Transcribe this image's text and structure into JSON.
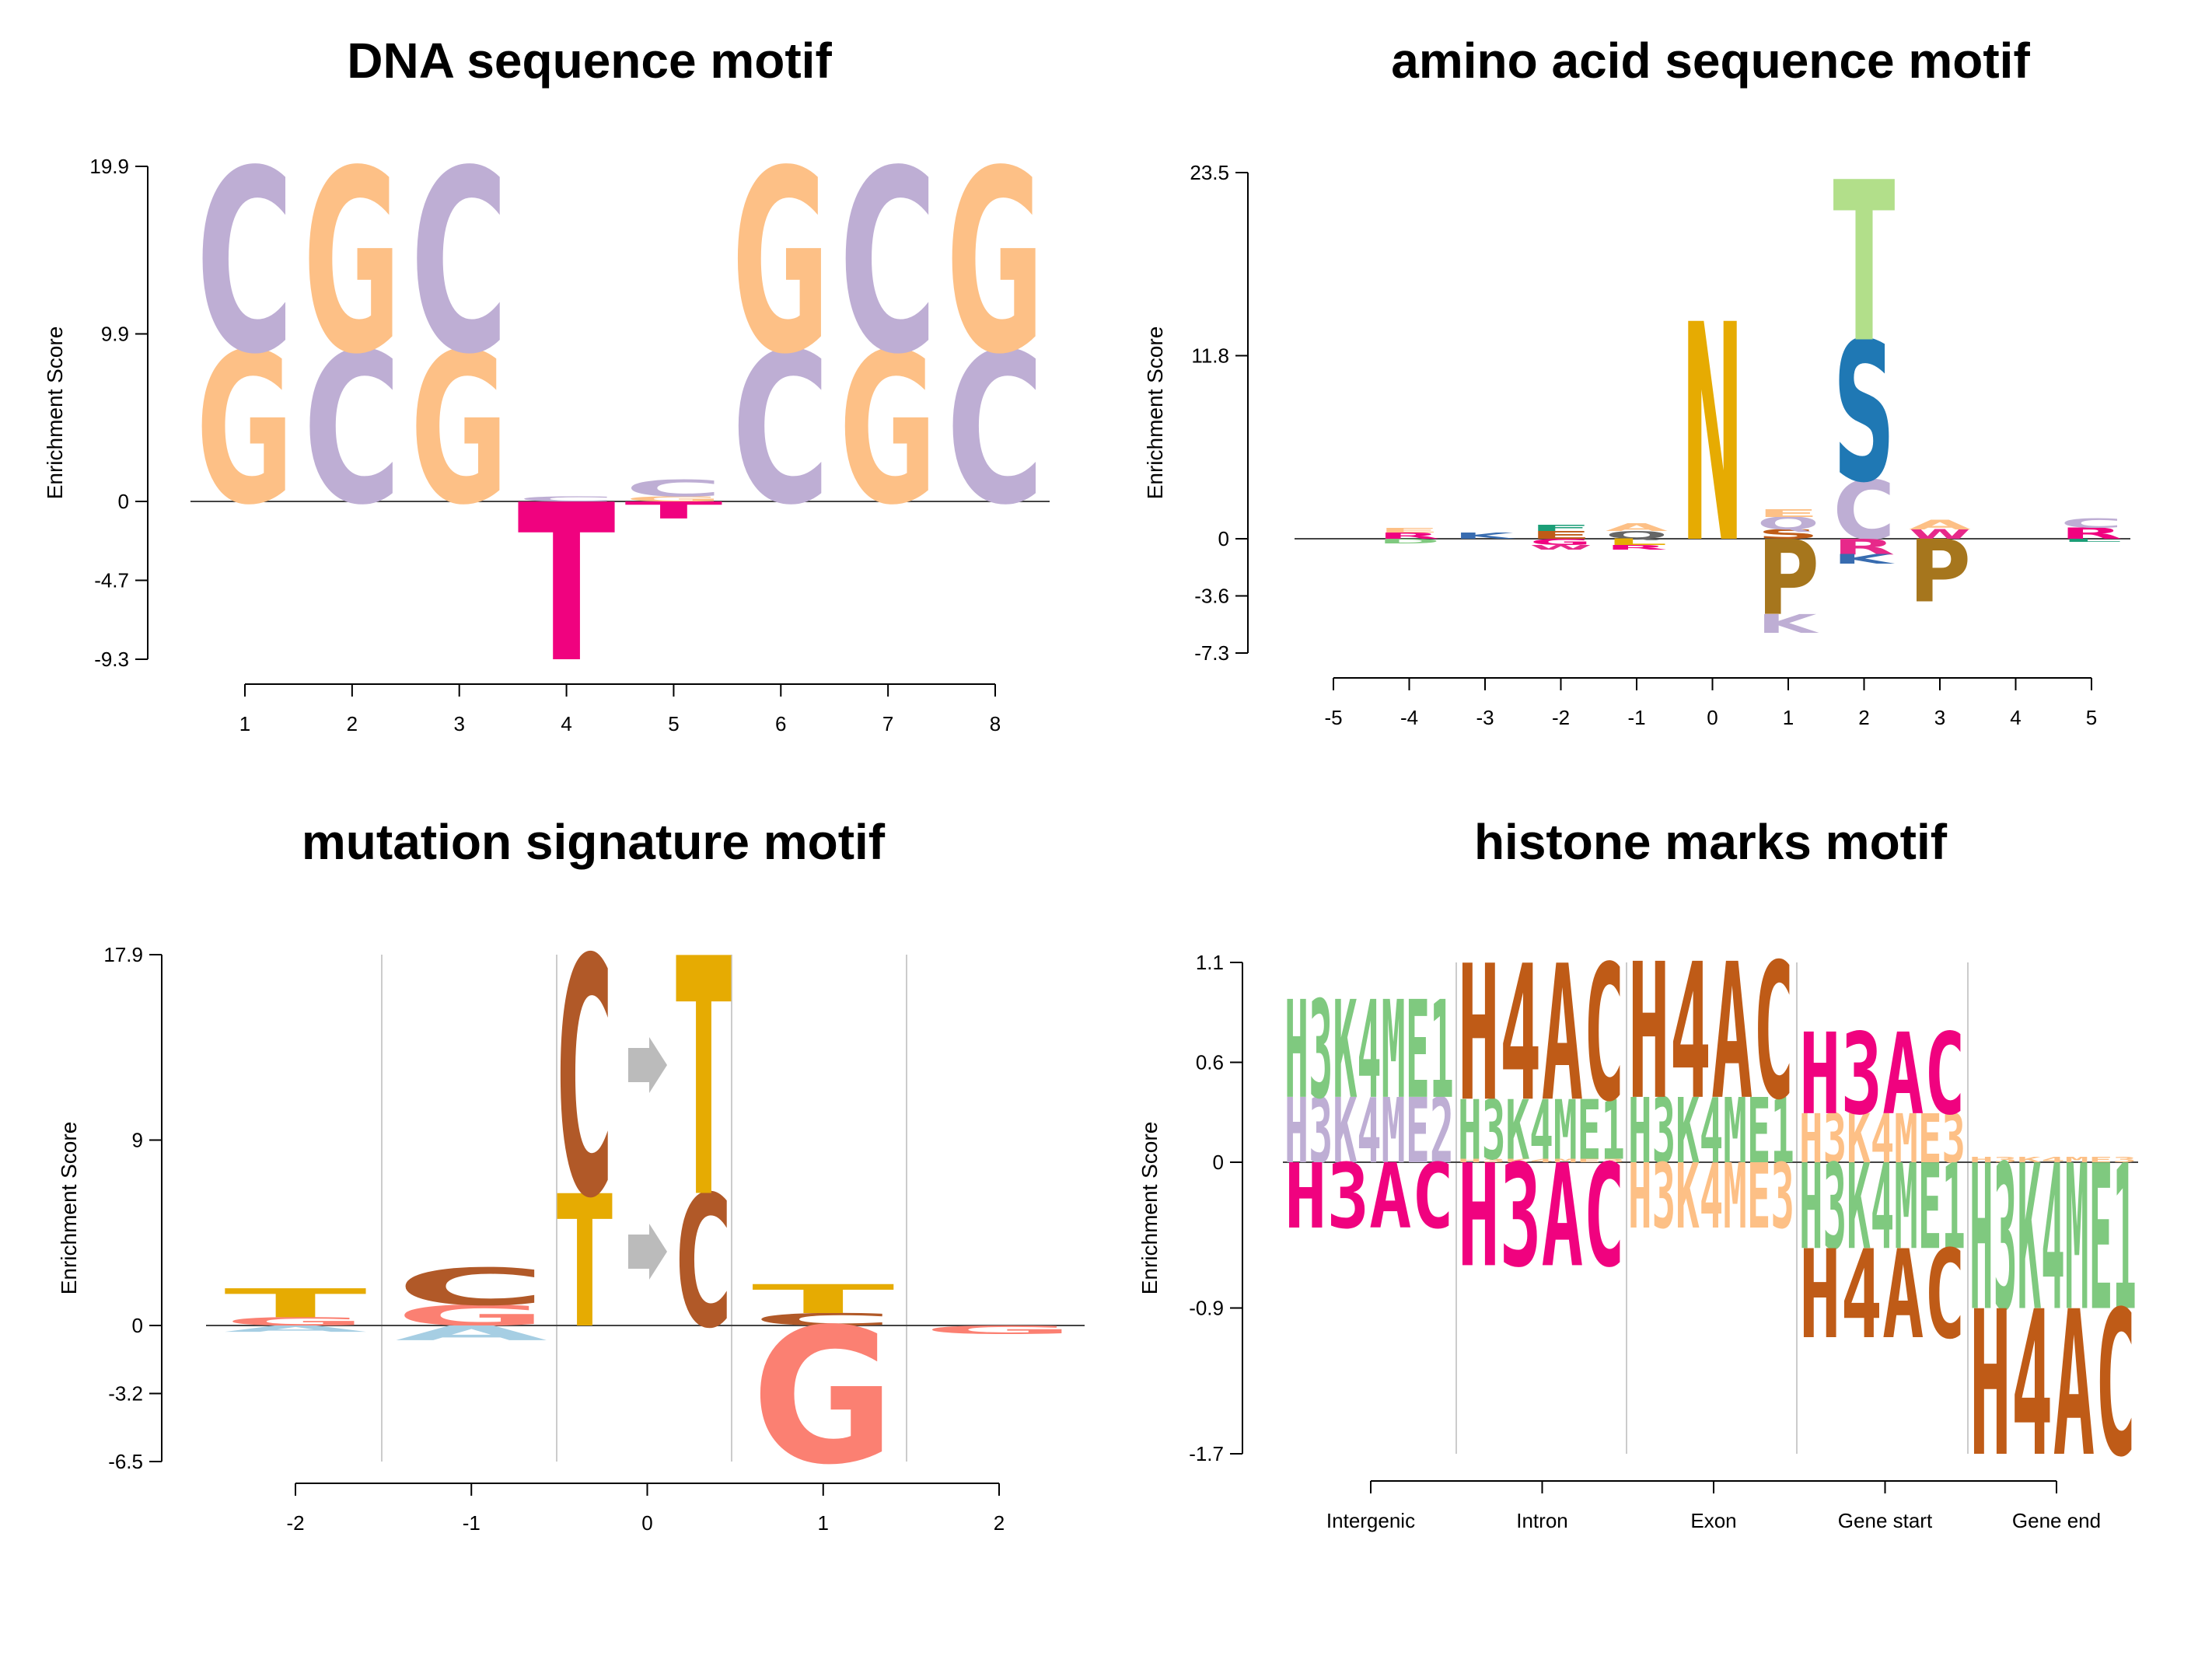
{
  "chart_data": [
    {
      "type": "sequence-logo",
      "title": "DNA sequence motif",
      "ylabel": "Enrichment Score",
      "yticks": [
        "19.9",
        "9.9",
        "0",
        "-4.7",
        "-9.3"
      ],
      "ylim": [
        -9.3,
        19.9
      ],
      "xticks": [
        "1",
        "2",
        "3",
        "4",
        "5",
        "6",
        "7",
        "8"
      ],
      "positions": [
        {
          "x": "1",
          "stack": [
            {
              "letter": "G",
              "value": 9.0
            },
            {
              "letter": "C",
              "value": 10.9
            }
          ]
        },
        {
          "x": "2",
          "stack": [
            {
              "letter": "C",
              "value": 9.0
            },
            {
              "letter": "G",
              "value": 10.9
            }
          ]
        },
        {
          "x": "3",
          "stack": [
            {
              "letter": "G",
              "value": 9.0
            },
            {
              "letter": "C",
              "value": 10.9
            }
          ]
        },
        {
          "x": "4",
          "stack": [
            {
              "letter": "C",
              "value": 0.3
            },
            {
              "letter": "T",
              "value": -9.3
            }
          ]
        },
        {
          "x": "5",
          "stack": [
            {
              "letter": "G",
              "value": 0.3
            },
            {
              "letter": "C",
              "value": 1.0
            },
            {
              "letter": "T",
              "value": -1.0
            }
          ]
        },
        {
          "x": "6",
          "stack": [
            {
              "letter": "C",
              "value": 9.0
            },
            {
              "letter": "G",
              "value": 10.9
            }
          ]
        },
        {
          "x": "7",
          "stack": [
            {
              "letter": "G",
              "value": 9.0
            },
            {
              "letter": "C",
              "value": 10.9
            }
          ]
        },
        {
          "x": "8",
          "stack": [
            {
              "letter": "C",
              "value": 9.0
            },
            {
              "letter": "G",
              "value": 10.9
            }
          ]
        }
      ],
      "colors": {
        "C": "#BEAED4",
        "G": "#FDC086",
        "T": "#F0027F",
        "A": "#7FC97F"
      }
    },
    {
      "type": "sequence-logo",
      "title": "amino acid sequence motif",
      "ylabel": "Enrichment Score",
      "yticks": [
        "23.5",
        "11.8",
        "0",
        "-3.6",
        "-7.3"
      ],
      "ylim": [
        -7.3,
        23.5
      ],
      "xticks": [
        "-5",
        "-4",
        "-3",
        "-2",
        "-1",
        "0",
        "1",
        "2",
        "3",
        "4",
        "5"
      ],
      "positions": [
        {
          "x": "-4",
          "stack": [
            {
              "letter": "R",
              "value": 0.4,
              "color": "#F0027F"
            },
            {
              "letter": "E",
              "value": 0.3,
              "color": "#FDC086"
            },
            {
              "letter": "D",
              "value": -0.3,
              "color": "#7FC97F"
            }
          ]
        },
        {
          "x": "-3",
          "stack": [
            {
              "letter": "K",
              "value": 0.4,
              "color": "#386CB0"
            }
          ]
        },
        {
          "x": "-2",
          "stack": [
            {
              "letter": "E",
              "value": 0.5,
              "color": "#BF5B17"
            },
            {
              "letter": "F",
              "value": 0.4,
              "color": "#1B9E77"
            },
            {
              "letter": "G",
              "value": -0.4,
              "color": "#F0027F"
            },
            {
              "letter": "W",
              "value": -0.3,
              "color": "#E7298A"
            }
          ]
        },
        {
          "x": "-1",
          "stack": [
            {
              "letter": "Q",
              "value": 0.5,
              "color": "#666666"
            },
            {
              "letter": "A",
              "value": 0.5,
              "color": "#FDC086"
            },
            {
              "letter": "L",
              "value": -0.4,
              "color": "#E6AB02"
            },
            {
              "letter": "R",
              "value": -0.3,
              "color": "#F0027F"
            }
          ]
        },
        {
          "x": "0",
          "stack": [
            {
              "letter": "N",
              "value": 14.0,
              "color": "#E6AB02"
            }
          ]
        },
        {
          "x": "1",
          "stack": [
            {
              "letter": "S",
              "value": 0.6,
              "color": "#BF5B17"
            },
            {
              "letter": "Q",
              "value": 0.8,
              "color": "#BEAED4"
            },
            {
              "letter": "E",
              "value": 0.5,
              "color": "#FDC086"
            },
            {
              "letter": "P",
              "value": -4.8,
              "color": "#A6761D"
            },
            {
              "letter": "K",
              "value": -1.2,
              "color": "#BEAED4"
            }
          ]
        },
        {
          "x": "2",
          "stack": [
            {
              "letter": "C",
              "value": 3.8,
              "color": "#BEAED4"
            },
            {
              "letter": "S",
              "value": 9.0,
              "color": "#1F78B4"
            },
            {
              "letter": "T",
              "value": 10.3,
              "color": "#B2DF8A"
            },
            {
              "letter": "R",
              "value": -1.0,
              "color": "#E7298A"
            },
            {
              "letter": "K",
              "value": -0.6,
              "color": "#386CB0"
            }
          ]
        },
        {
          "x": "3",
          "stack": [
            {
              "letter": "W",
              "value": 0.6,
              "color": "#E7298A"
            },
            {
              "letter": "A",
              "value": 0.6,
              "color": "#FDC086"
            },
            {
              "letter": "P",
              "value": -4.0,
              "color": "#A6761D"
            }
          ]
        },
        {
          "x": "5",
          "stack": [
            {
              "letter": "R",
              "value": 0.7,
              "color": "#F0027F"
            },
            {
              "letter": "C",
              "value": 0.6,
              "color": "#BEAED4"
            },
            {
              "letter": "L",
              "value": -0.2,
              "color": "#1B9E77"
            }
          ]
        }
      ]
    },
    {
      "type": "sequence-logo",
      "title": "mutation signature motif",
      "ylabel": "Enrichment Score",
      "yticks": [
        "17.9",
        "9",
        "0",
        "-3.2",
        "-6.5"
      ],
      "ylim": [
        -6.5,
        17.9
      ],
      "xticks": [
        "-2",
        "-1",
        "0",
        "1",
        "2"
      ],
      "positions": [
        {
          "x": "-2",
          "stack": [
            {
              "letter": "G",
              "value": 0.4,
              "color": "#FB8072"
            },
            {
              "letter": "T",
              "value": 1.4,
              "color": "#E6AB02"
            },
            {
              "letter": "A",
              "value": -0.3,
              "color": "#A6CEE3"
            }
          ]
        },
        {
          "x": "-1",
          "stack": [
            {
              "letter": "G",
              "value": 1.0,
              "color": "#FB8072"
            },
            {
              "letter": "C",
              "value": 1.8,
              "color": "#B15928"
            },
            {
              "letter": "A",
              "value": -0.7,
              "color": "#A6CEE3"
            }
          ]
        },
        {
          "x": "0 ref",
          "stack": [
            {
              "letter": "T",
              "value": 6.4,
              "color": "#E6AB02"
            },
            {
              "letter": "C",
              "value": 11.5,
              "color": "#B15928"
            }
          ]
        },
        {
          "x": "0 alt",
          "stack": [
            {
              "letter": "C",
              "value": 6.4,
              "color": "#B15928"
            },
            {
              "letter": "T",
              "value": 11.5,
              "color": "#E6AB02"
            }
          ]
        },
        {
          "x": "1",
          "stack": [
            {
              "letter": "C",
              "value": 0.6,
              "color": "#B15928"
            },
            {
              "letter": "T",
              "value": 1.4,
              "color": "#E6AB02"
            },
            {
              "letter": "G",
              "value": -6.5,
              "color": "#FB8072"
            }
          ]
        },
        {
          "x": "2",
          "stack": [
            {
              "letter": "G",
              "value": -0.4,
              "color": "#FB8072"
            }
          ]
        }
      ],
      "arrow_color": "#BBBBBB"
    },
    {
      "type": "sequence-logo",
      "title": "histone marks motif",
      "ylabel": "Enrichment Score",
      "yticks": [
        "1.1",
        "0.6",
        "0",
        "-0.9",
        "-1.7"
      ],
      "ylim": [
        -1.7,
        1.1
      ],
      "xticks": [
        "Intergenic",
        "Intron",
        "Exon",
        "Gene start",
        "Gene end"
      ],
      "positions": [
        {
          "x": "Intergenic",
          "stack": [
            {
              "letter": "H3K4ME2",
              "value": 0.36,
              "color": "#BEAED4"
            },
            {
              "letter": "H3K4ME1",
              "value": 0.54,
              "color": "#7FC97F"
            },
            {
              "letter": "H3AC",
              "value": -0.38,
              "color": "#F0027F"
            }
          ]
        },
        {
          "x": "Intron",
          "stack": [
            {
              "letter": "H3K4ME3",
              "value": 0.02,
              "color": "#FDC086"
            },
            {
              "letter": "H3K4ME1",
              "value": 0.33,
              "color": "#7FC97F"
            },
            {
              "letter": "H4AC",
              "value": 0.75,
              "color": "#BF5B17"
            },
            {
              "letter": "H3AC",
              "value": -0.6,
              "color": "#F0027F"
            }
          ]
        },
        {
          "x": "Exon",
          "stack": [
            {
              "letter": "H3K4ME1",
              "value": 0.36,
              "color": "#7FC97F"
            },
            {
              "letter": "H4AC",
              "value": 0.75,
              "color": "#BF5B17"
            },
            {
              "letter": "H3K4ME3",
              "value": -0.38,
              "color": "#FDC086"
            }
          ]
        },
        {
          "x": "Gene start",
          "stack": [
            {
              "letter": "H3K4ME3",
              "value": 0.27,
              "color": "#FDC086"
            },
            {
              "letter": "H3AC",
              "value": 0.45,
              "color": "#F0027F"
            },
            {
              "letter": "H3K4ME1",
              "value": -0.5,
              "color": "#7FC97F"
            },
            {
              "letter": "H4AC",
              "value": -0.52,
              "color": "#BF5B17"
            }
          ]
        },
        {
          "x": "Gene end",
          "stack": [
            {
              "letter": "H3K4ME3",
              "value": 0.03,
              "color": "#FDC086"
            },
            {
              "letter": "H3K4ME1",
              "value": -0.85,
              "color": "#7FC97F"
            },
            {
              "letter": "H4AC",
              "value": -0.85,
              "color": "#BF5B17"
            }
          ]
        }
      ]
    }
  ]
}
